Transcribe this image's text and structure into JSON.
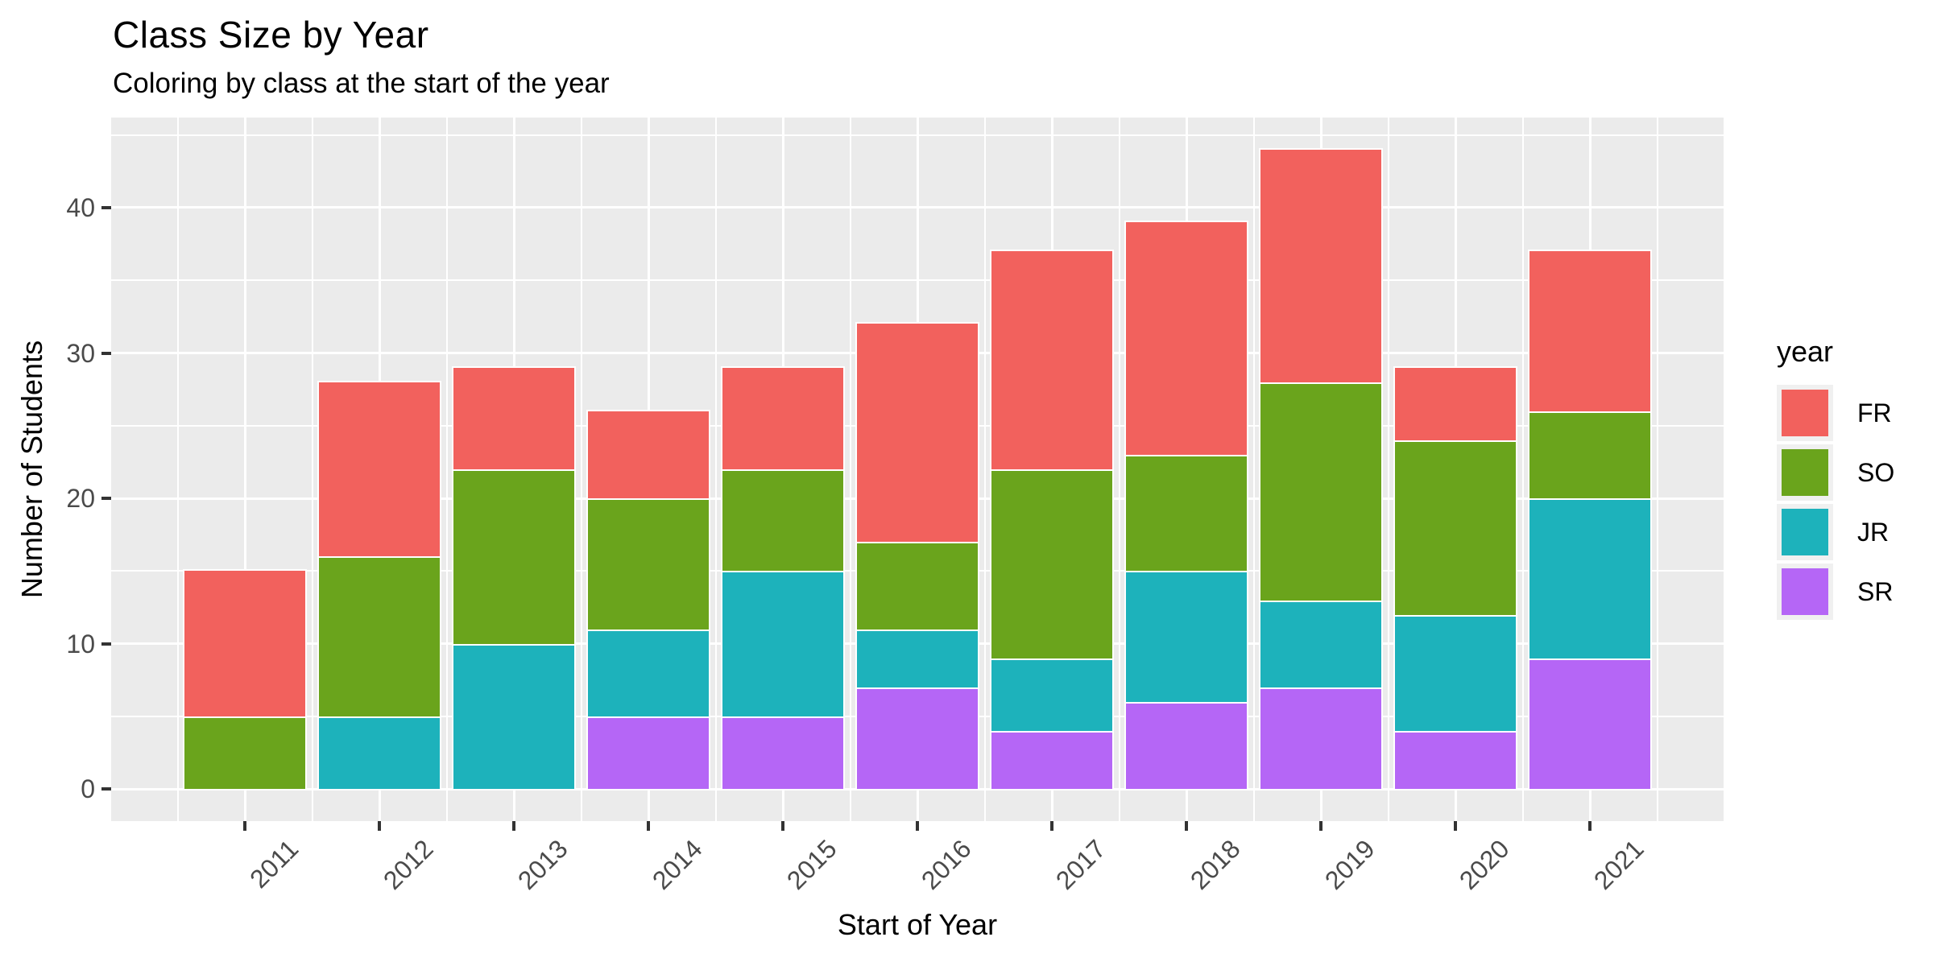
{
  "chart_data": {
    "type": "bar",
    "stacked": true,
    "title": "Class Size by Year",
    "subtitle": "Coloring by class at the start of the year",
    "xlabel": "Start of Year",
    "ylabel": "Number of Students",
    "legend_title": "year",
    "legend_position": "right",
    "categories": [
      "2011",
      "2012",
      "2013",
      "2014",
      "2015",
      "2016",
      "2017",
      "2018",
      "2019",
      "2020",
      "2021"
    ],
    "series": [
      {
        "name": "FR",
        "color": "#F2615D",
        "values": [
          10,
          12,
          7,
          6,
          7,
          15,
          15,
          16,
          16,
          5,
          11
        ]
      },
      {
        "name": "SO",
        "color": "#6AA41C",
        "values": [
          5,
          11,
          12,
          9,
          7,
          6,
          13,
          8,
          15,
          12,
          6
        ]
      },
      {
        "name": "JR",
        "color": "#1DB2BB",
        "values": [
          0,
          5,
          10,
          6,
          10,
          4,
          5,
          9,
          6,
          8,
          11
        ]
      },
      {
        "name": "SR",
        "color": "#B566F6",
        "values": [
          0,
          0,
          0,
          5,
          5,
          7,
          4,
          6,
          7,
          4,
          9
        ]
      }
    ],
    "stack_order_bottom_to_top": [
      "SR",
      "JR",
      "SO",
      "FR"
    ],
    "stack_totals": [
      15,
      28,
      29,
      26,
      29,
      32,
      37,
      39,
      44,
      29,
      37
    ],
    "y_ticks": [
      0,
      10,
      20,
      30,
      40
    ],
    "y_minor_ticks": [
      5,
      15,
      25,
      35,
      45
    ],
    "ylim": [
      0,
      44
    ],
    "grid": true,
    "panel_bg": "#EBEBEB",
    "grid_color": "#FFFFFF",
    "legend_key_bg": "#F0F0F0"
  }
}
